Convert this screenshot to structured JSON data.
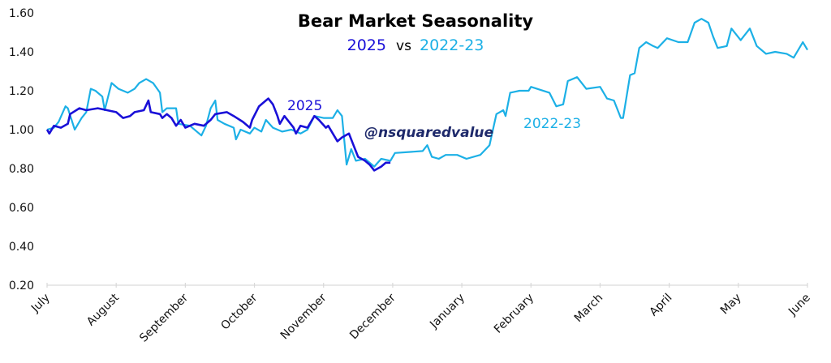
{
  "chart_data": {
    "type": "line",
    "title": "Bear Market Seasonality",
    "subtitle": {
      "part1": "2025",
      "part2": "vs",
      "part3": "2022-23"
    },
    "watermark": "@nsquaredvalue",
    "xlabel": "",
    "ylabel": "",
    "ylim": [
      0.2,
      1.6
    ],
    "yticks": [
      "0.20",
      "0.40",
      "0.60",
      "0.80",
      "1.00",
      "1.20",
      "1.40",
      "1.60"
    ],
    "xticks": [
      "July",
      "August",
      "September",
      "October",
      "November",
      "December",
      "January",
      "February",
      "March",
      "April",
      "May",
      "June"
    ],
    "grid": false,
    "legend": "none",
    "colors": {
      "s2025": "#1a10d8",
      "s2022": "#1cb0e6",
      "watermark": "#1f2a6b"
    },
    "series": [
      {
        "name": "2022-23",
        "start_year": 2022,
        "label": "2022-23",
        "points": [
          [
            "2022-07-01",
            1.0
          ],
          [
            "2022-07-04",
            1.01
          ],
          [
            "2022-07-06",
            1.04
          ],
          [
            "2022-07-09",
            1.12
          ],
          [
            "2022-07-10",
            1.11
          ],
          [
            "2022-07-13",
            1.0
          ],
          [
            "2022-07-16",
            1.06
          ],
          [
            "2022-07-18",
            1.09
          ],
          [
            "2022-07-20",
            1.21
          ],
          [
            "2022-07-22",
            1.2
          ],
          [
            "2022-07-25",
            1.17
          ],
          [
            "2022-07-26",
            1.1
          ],
          [
            "2022-07-29",
            1.24
          ],
          [
            "2022-08-02",
            1.21
          ],
          [
            "2022-08-06",
            1.19
          ],
          [
            "2022-08-09",
            1.21
          ],
          [
            "2022-08-11",
            1.24
          ],
          [
            "2022-08-14",
            1.26
          ],
          [
            "2022-08-17",
            1.24
          ],
          [
            "2022-08-20",
            1.19
          ],
          [
            "2022-08-21",
            1.09
          ],
          [
            "2022-08-23",
            1.11
          ],
          [
            "2022-08-27",
            1.11
          ],
          [
            "2022-08-28",
            1.03
          ],
          [
            "2022-09-03",
            1.02
          ],
          [
            "2022-09-08",
            0.97
          ],
          [
            "2022-09-10",
            1.02
          ],
          [
            "2022-09-12",
            1.11
          ],
          [
            "2022-09-14",
            1.15
          ],
          [
            "2022-09-15",
            1.05
          ],
          [
            "2022-09-18",
            1.03
          ],
          [
            "2022-09-22",
            1.01
          ],
          [
            "2022-09-23",
            0.95
          ],
          [
            "2022-09-25",
            1.0
          ],
          [
            "2022-09-29",
            0.98
          ],
          [
            "2022-10-01",
            1.01
          ],
          [
            "2022-10-04",
            0.99
          ],
          [
            "2022-10-06",
            1.05
          ],
          [
            "2022-10-09",
            1.01
          ],
          [
            "2022-10-13",
            0.99
          ],
          [
            "2022-10-17",
            1.0
          ],
          [
            "2022-10-21",
            0.98
          ],
          [
            "2022-10-24",
            1.0
          ],
          [
            "2022-10-27",
            1.07
          ],
          [
            "2022-11-01",
            1.06
          ],
          [
            "2022-11-05",
            1.06
          ],
          [
            "2022-11-07",
            1.1
          ],
          [
            "2022-11-09",
            1.07
          ],
          [
            "2022-11-11",
            0.82
          ],
          [
            "2022-11-13",
            0.9
          ],
          [
            "2022-11-15",
            0.84
          ],
          [
            "2022-11-19",
            0.85
          ],
          [
            "2022-11-23",
            0.81
          ],
          [
            "2022-11-26",
            0.85
          ],
          [
            "2022-11-30",
            0.84
          ],
          [
            "2022-12-02",
            0.88
          ],
          [
            "2022-12-14",
            0.89
          ],
          [
            "2022-12-16",
            0.92
          ],
          [
            "2022-12-18",
            0.86
          ],
          [
            "2022-12-21",
            0.85
          ],
          [
            "2022-12-24",
            0.87
          ],
          [
            "2022-12-29",
            0.87
          ],
          [
            "2023-01-03",
            0.85
          ],
          [
            "2023-01-09",
            0.87
          ],
          [
            "2023-01-13",
            0.92
          ],
          [
            "2023-01-16",
            1.08
          ],
          [
            "2023-01-19",
            1.1
          ],
          [
            "2023-01-20",
            1.07
          ],
          [
            "2023-01-22",
            1.19
          ],
          [
            "2023-01-26",
            1.2
          ],
          [
            "2023-01-30",
            1.2
          ],
          [
            "2023-02-01",
            1.22
          ],
          [
            "2023-02-09",
            1.19
          ],
          [
            "2023-02-12",
            1.12
          ],
          [
            "2023-02-15",
            1.13
          ],
          [
            "2023-02-17",
            1.25
          ],
          [
            "2023-02-21",
            1.27
          ],
          [
            "2023-02-25",
            1.21
          ],
          [
            "2023-03-01",
            1.22
          ],
          [
            "2023-03-04",
            1.16
          ],
          [
            "2023-03-07",
            1.15
          ],
          [
            "2023-03-10",
            1.06
          ],
          [
            "2023-03-11",
            1.06
          ],
          [
            "2023-03-14",
            1.28
          ],
          [
            "2023-03-16",
            1.29
          ],
          [
            "2023-03-18",
            1.42
          ],
          [
            "2023-03-21",
            1.45
          ],
          [
            "2023-03-24",
            1.43
          ],
          [
            "2023-03-26",
            1.42
          ],
          [
            "2023-03-30",
            1.47
          ],
          [
            "2023-04-05",
            1.45
          ],
          [
            "2023-04-09",
            1.45
          ],
          [
            "2023-04-12",
            1.55
          ],
          [
            "2023-04-15",
            1.57
          ],
          [
            "2023-04-18",
            1.55
          ],
          [
            "2023-04-20",
            1.48
          ],
          [
            "2023-04-22",
            1.42
          ],
          [
            "2023-04-26",
            1.43
          ],
          [
            "2023-04-28",
            1.52
          ],
          [
            "2023-05-02",
            1.46
          ],
          [
            "2023-05-06",
            1.52
          ],
          [
            "2023-05-09",
            1.43
          ],
          [
            "2023-05-13",
            1.39
          ],
          [
            "2023-05-17",
            1.4
          ],
          [
            "2023-05-22",
            1.39
          ],
          [
            "2023-05-25",
            1.37
          ],
          [
            "2023-05-29",
            1.45
          ],
          [
            "2023-06-01",
            1.41
          ]
        ]
      },
      {
        "name": "2025",
        "start_year": 2025,
        "label": "2025",
        "points": [
          [
            "2025-07-01",
            1.0
          ],
          [
            "2025-07-02",
            0.98
          ],
          [
            "2025-07-04",
            1.02
          ],
          [
            "2025-07-07",
            1.01
          ],
          [
            "2025-07-10",
            1.03
          ],
          [
            "2025-07-11",
            1.08
          ],
          [
            "2025-07-15",
            1.11
          ],
          [
            "2025-07-18",
            1.1
          ],
          [
            "2025-07-23",
            1.11
          ],
          [
            "2025-07-27",
            1.1
          ],
          [
            "2025-07-31",
            1.09
          ],
          [
            "2025-08-04",
            1.06
          ],
          [
            "2025-08-07",
            1.07
          ],
          [
            "2025-08-09",
            1.09
          ],
          [
            "2025-08-13",
            1.1
          ],
          [
            "2025-08-15",
            1.15
          ],
          [
            "2025-08-16",
            1.09
          ],
          [
            "2025-08-20",
            1.08
          ],
          [
            "2025-08-21",
            1.06
          ],
          [
            "2025-08-23",
            1.08
          ],
          [
            "2025-08-25",
            1.06
          ],
          [
            "2025-08-27",
            1.02
          ],
          [
            "2025-08-29",
            1.05
          ],
          [
            "2025-09-01",
            1.01
          ],
          [
            "2025-09-05",
            1.03
          ],
          [
            "2025-09-09",
            1.02
          ],
          [
            "2025-09-12",
            1.05
          ],
          [
            "2025-09-14",
            1.08
          ],
          [
            "2025-09-19",
            1.09
          ],
          [
            "2025-09-22",
            1.07
          ],
          [
            "2025-09-26",
            1.04
          ],
          [
            "2025-09-29",
            1.01
          ],
          [
            "2025-09-30",
            1.05
          ],
          [
            "2025-10-03",
            1.12
          ],
          [
            "2025-10-06",
            1.15
          ],
          [
            "2025-10-07",
            1.16
          ],
          [
            "2025-10-09",
            1.13
          ],
          [
            "2025-10-11",
            1.07
          ],
          [
            "2025-10-12",
            1.03
          ],
          [
            "2025-10-14",
            1.07
          ],
          [
            "2025-10-18",
            1.01
          ],
          [
            "2025-10-19",
            0.98
          ],
          [
            "2025-10-21",
            1.02
          ],
          [
            "2025-10-24",
            1.01
          ],
          [
            "2025-10-27",
            1.07
          ],
          [
            "2025-10-29",
            1.05
          ],
          [
            "2025-11-02",
            1.01
          ],
          [
            "2025-11-03",
            1.02
          ],
          [
            "2025-11-07",
            0.94
          ],
          [
            "2025-11-09",
            0.96
          ],
          [
            "2025-11-12",
            0.98
          ],
          [
            "2025-11-14",
            0.92
          ],
          [
            "2025-11-16",
            0.86
          ],
          [
            "2025-11-19",
            0.84
          ],
          [
            "2025-11-21",
            0.82
          ],
          [
            "2025-11-23",
            0.79
          ],
          [
            "2025-11-26",
            0.81
          ],
          [
            "2025-11-28",
            0.83
          ],
          [
            "2025-11-30",
            0.83
          ]
        ]
      }
    ]
  }
}
